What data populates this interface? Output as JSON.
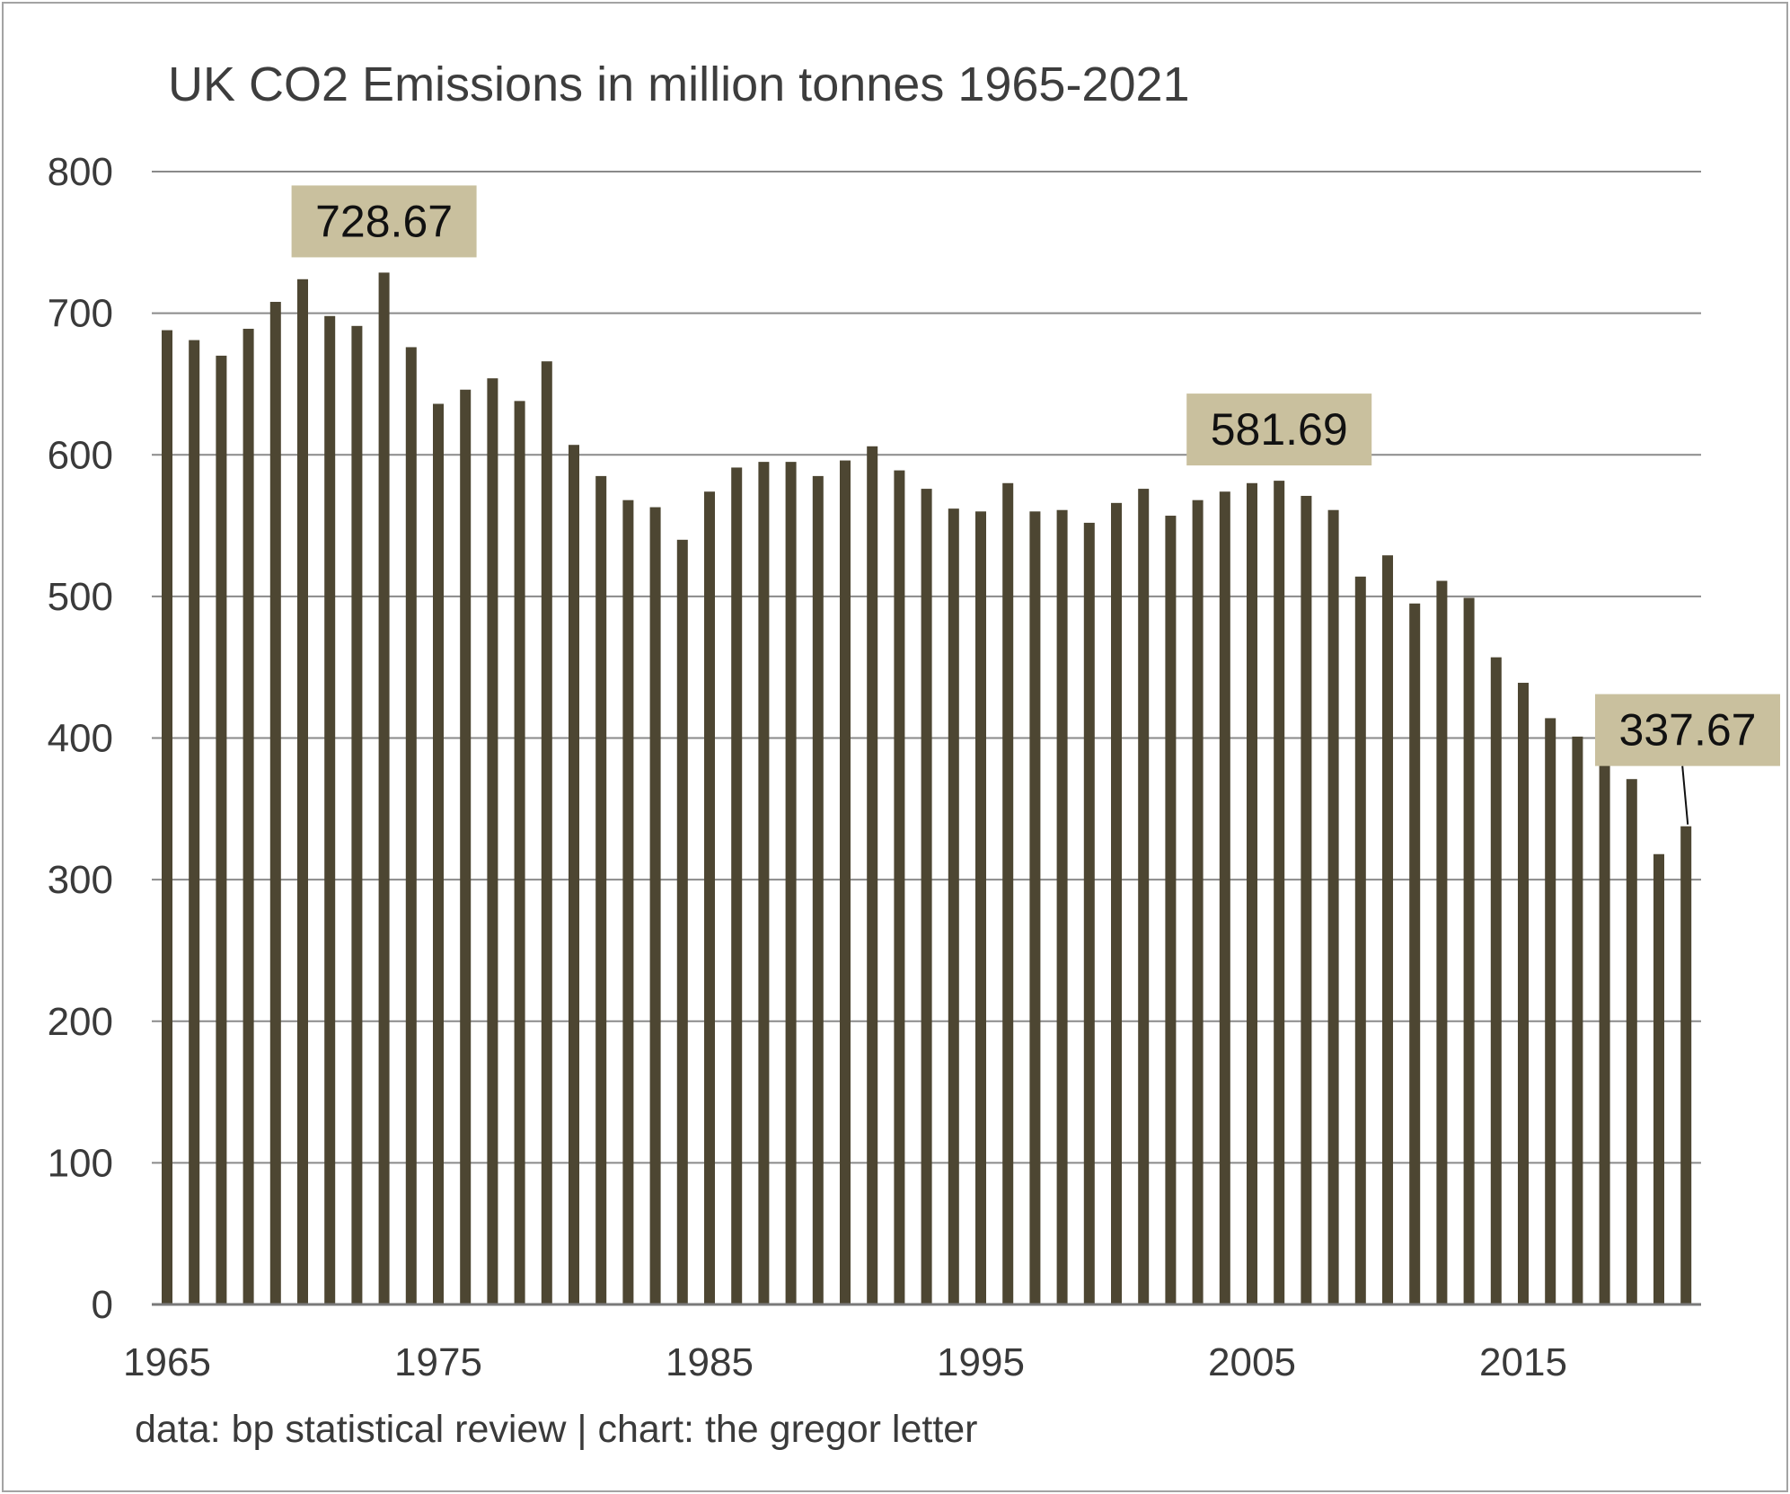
{
  "chart_data": {
    "type": "bar",
    "title": "UK CO2 Emissions in million tonnes 1965-2021",
    "source": "data: bp statistical review | chart: the gregor letter",
    "xlabel": "",
    "ylabel": "",
    "ylim": [
      0,
      800
    ],
    "y_ticks": [
      0,
      100,
      200,
      300,
      400,
      500,
      600,
      700,
      800
    ],
    "x_tick_labels": [
      "1965",
      "1975",
      "1985",
      "1995",
      "2005",
      "2015"
    ],
    "grid": true,
    "bar_color": "#4d4632",
    "annotation_color": "#c9c09e",
    "categories": [
      1965,
      1966,
      1967,
      1968,
      1969,
      1970,
      1971,
      1972,
      1973,
      1974,
      1975,
      1976,
      1977,
      1978,
      1979,
      1980,
      1981,
      1982,
      1983,
      1984,
      1985,
      1986,
      1987,
      1988,
      1989,
      1990,
      1991,
      1992,
      1993,
      1994,
      1995,
      1996,
      1997,
      1998,
      1999,
      2000,
      2001,
      2002,
      2003,
      2004,
      2005,
      2006,
      2007,
      2008,
      2009,
      2010,
      2011,
      2012,
      2013,
      2014,
      2015,
      2016,
      2017,
      2018,
      2019,
      2020,
      2021
    ],
    "values": [
      688,
      681,
      670,
      689,
      708,
      724,
      698,
      691,
      728.67,
      676,
      636,
      646,
      654,
      638,
      666,
      607,
      585,
      568,
      563,
      540,
      574,
      591,
      595,
      595,
      585,
      596,
      606,
      589,
      576,
      562,
      560,
      580,
      560,
      561,
      552,
      566,
      576,
      557,
      568,
      574,
      580,
      581.69,
      571,
      561,
      514,
      529,
      495,
      511,
      499,
      457,
      439,
      414,
      401,
      388,
      371,
      318,
      337.67
    ],
    "annotations": [
      {
        "year": 1973,
        "label": "728.67"
      },
      {
        "year": 2006,
        "label": "581.69"
      },
      {
        "year": 2021,
        "label": "337.67"
      }
    ]
  }
}
